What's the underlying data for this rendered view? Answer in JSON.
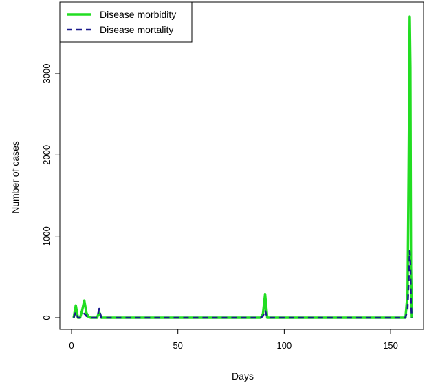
{
  "chart_data": {
    "type": "line",
    "title": "",
    "xlabel": "Days",
    "ylabel": "Number of cases",
    "xlim": [
      0,
      160
    ],
    "ylim": [
      -100,
      3750
    ],
    "xticks": [
      0,
      50,
      100,
      150
    ],
    "yticks": [
      0,
      1000,
      2000,
      3000
    ],
    "grid": false,
    "legend": "top-left",
    "series": [
      {
        "name": "Disease morbidity",
        "color": "#22dd22",
        "style": "solid",
        "x": [
          1,
          2,
          3,
          4,
          5,
          6,
          7,
          8,
          9,
          10,
          11,
          12,
          13,
          14,
          15,
          20,
          40,
          60,
          80,
          89,
          90,
          91,
          92,
          93,
          100,
          120,
          140,
          155,
          157,
          158,
          158.5,
          159,
          159.3,
          159.6,
          160
        ],
        "y": [
          0,
          150,
          0,
          0,
          90,
          210,
          60,
          10,
          0,
          0,
          0,
          0,
          70,
          0,
          0,
          0,
          0,
          0,
          0,
          0,
          50,
          290,
          0,
          0,
          0,
          0,
          0,
          0,
          0,
          300,
          1850,
          3700,
          3080,
          620,
          0
        ]
      },
      {
        "name": "Disease mortality",
        "color": "#1a1a8c",
        "style": "dashed",
        "x": [
          1,
          2,
          3,
          4,
          5,
          6,
          7,
          8,
          9,
          10,
          11,
          12,
          13,
          14,
          15,
          20,
          40,
          60,
          80,
          89,
          90,
          91,
          92,
          93,
          100,
          120,
          140,
          155,
          157,
          158,
          158.5,
          159,
          159.3,
          159.6,
          160
        ],
        "y": [
          0,
          70,
          0,
          0,
          20,
          50,
          20,
          5,
          0,
          0,
          0,
          0,
          110,
          0,
          0,
          0,
          0,
          0,
          0,
          0,
          20,
          90,
          0,
          0,
          0,
          0,
          0,
          0,
          0,
          100,
          420,
          820,
          660,
          170,
          0
        ]
      }
    ]
  }
}
